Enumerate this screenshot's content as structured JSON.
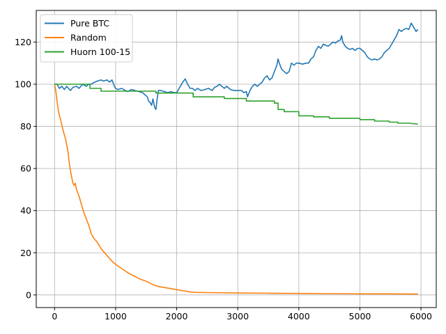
{
  "chart_data": {
    "type": "line",
    "title": "",
    "xlabel": "",
    "ylabel": "",
    "xlim": [
      -300,
      6250
    ],
    "ylim": [
      -6,
      135
    ],
    "xticks": [
      0,
      1000,
      2000,
      3000,
      4000,
      5000,
      6000
    ],
    "yticks": [
      0,
      20,
      40,
      60,
      80,
      100,
      120
    ],
    "grid": true,
    "legend_position": "top-left",
    "series": [
      {
        "name": "Pure BTC",
        "color": "#1f77b4",
        "points": [
          [
            0,
            100
          ],
          [
            40,
            100
          ],
          [
            80,
            98
          ],
          [
            120,
            99
          ],
          [
            160,
            97.5
          ],
          [
            200,
            99
          ],
          [
            260,
            97
          ],
          [
            300,
            98.5
          ],
          [
            360,
            99
          ],
          [
            400,
            98
          ],
          [
            460,
            100
          ],
          [
            520,
            99
          ],
          [
            560,
            100
          ],
          [
            600,
            100
          ],
          [
            660,
            101
          ],
          [
            700,
            101.5
          ],
          [
            760,
            102
          ],
          [
            800,
            101.5
          ],
          [
            860,
            102
          ],
          [
            900,
            101
          ],
          [
            940,
            102
          ],
          [
            980,
            99
          ],
          [
            1000,
            98
          ],
          [
            1040,
            97.5
          ],
          [
            1100,
            98
          ],
          [
            1160,
            97
          ],
          [
            1200,
            96.5
          ],
          [
            1260,
            97.5
          ],
          [
            1320,
            97
          ],
          [
            1380,
            96.5
          ],
          [
            1440,
            96
          ],
          [
            1480,
            95
          ],
          [
            1520,
            94
          ],
          [
            1540,
            92
          ],
          [
            1560,
            91.5
          ],
          [
            1590,
            90
          ],
          [
            1610,
            93
          ],
          [
            1640,
            89
          ],
          [
            1660,
            88
          ],
          [
            1680,
            93
          ],
          [
            1700,
            97
          ],
          [
            1740,
            97
          ],
          [
            1800,
            96.5
          ],
          [
            1860,
            96
          ],
          [
            1900,
            96.5
          ],
          [
            1960,
            96
          ],
          [
            2000,
            96
          ],
          [
            2060,
            99
          ],
          [
            2100,
            101
          ],
          [
            2140,
            102.5
          ],
          [
            2180,
            100
          ],
          [
            2220,
            98
          ],
          [
            2260,
            98
          ],
          [
            2300,
            97
          ],
          [
            2340,
            98
          ],
          [
            2400,
            97
          ],
          [
            2460,
            97.5
          ],
          [
            2520,
            98
          ],
          [
            2580,
            97
          ],
          [
            2620,
            98.5
          ],
          [
            2660,
            99
          ],
          [
            2700,
            100
          ],
          [
            2740,
            99
          ],
          [
            2780,
            98
          ],
          [
            2820,
            99
          ],
          [
            2880,
            97.5
          ],
          [
            2940,
            97
          ],
          [
            3000,
            97
          ],
          [
            3060,
            97
          ],
          [
            3100,
            96
          ],
          [
            3140,
            96.5
          ],
          [
            3160,
            94
          ],
          [
            3200,
            97
          ],
          [
            3240,
            99
          ],
          [
            3280,
            100
          ],
          [
            3320,
            99
          ],
          [
            3360,
            100
          ],
          [
            3400,
            101
          ],
          [
            3440,
            103
          ],
          [
            3480,
            104
          ],
          [
            3520,
            102
          ],
          [
            3560,
            103
          ],
          [
            3600,
            106
          ],
          [
            3640,
            109
          ],
          [
            3660,
            112
          ],
          [
            3680,
            110
          ],
          [
            3720,
            107
          ],
          [
            3760,
            106
          ],
          [
            3800,
            105
          ],
          [
            3840,
            106
          ],
          [
            3880,
            110
          ],
          [
            3920,
            109
          ],
          [
            3960,
            110
          ],
          [
            4000,
            110
          ],
          [
            4060,
            109.5
          ],
          [
            4120,
            110
          ],
          [
            4160,
            110
          ],
          [
            4200,
            112
          ],
          [
            4240,
            113
          ],
          [
            4280,
            116
          ],
          [
            4320,
            118
          ],
          [
            4360,
            117
          ],
          [
            4400,
            119
          ],
          [
            4440,
            118.5
          ],
          [
            4480,
            118
          ],
          [
            4520,
            119
          ],
          [
            4560,
            120
          ],
          [
            4600,
            119.5
          ],
          [
            4640,
            120.5
          ],
          [
            4680,
            121
          ],
          [
            4700,
            123
          ],
          [
            4720,
            120
          ],
          [
            4760,
            118
          ],
          [
            4800,
            117
          ],
          [
            4840,
            116.5
          ],
          [
            4880,
            117
          ],
          [
            4920,
            116
          ],
          [
            4960,
            117
          ],
          [
            5000,
            117
          ],
          [
            5040,
            116
          ],
          [
            5080,
            115
          ],
          [
            5120,
            113
          ],
          [
            5160,
            112
          ],
          [
            5200,
            111.5
          ],
          [
            5240,
            112
          ],
          [
            5280,
            111.5
          ],
          [
            5320,
            112
          ],
          [
            5360,
            113
          ],
          [
            5400,
            115
          ],
          [
            5440,
            116
          ],
          [
            5480,
            117
          ],
          [
            5520,
            119
          ],
          [
            5560,
            121
          ],
          [
            5600,
            123
          ],
          [
            5640,
            126
          ],
          [
            5680,
            125
          ],
          [
            5720,
            126
          ],
          [
            5760,
            126.5
          ],
          [
            5800,
            126
          ],
          [
            5840,
            129
          ],
          [
            5880,
            127
          ],
          [
            5920,
            125
          ],
          [
            5950,
            126
          ]
        ]
      },
      {
        "name": "Random",
        "color": "#ff7f0e",
        "points": [
          [
            0,
            100
          ],
          [
            20,
            97
          ],
          [
            40,
            92
          ],
          [
            60,
            88
          ],
          [
            80,
            85
          ],
          [
            100,
            83
          ],
          [
            140,
            78
          ],
          [
            180,
            74
          ],
          [
            220,
            68
          ],
          [
            240,
            63
          ],
          [
            260,
            59
          ],
          [
            280,
            56
          ],
          [
            300,
            53
          ],
          [
            320,
            52
          ],
          [
            340,
            53
          ],
          [
            360,
            50
          ],
          [
            400,
            47
          ],
          [
            440,
            43
          ],
          [
            480,
            39
          ],
          [
            520,
            36
          ],
          [
            560,
            33
          ],
          [
            600,
            29
          ],
          [
            640,
            27
          ],
          [
            700,
            25
          ],
          [
            760,
            22
          ],
          [
            820,
            20
          ],
          [
            880,
            18
          ],
          [
            940,
            16
          ],
          [
            1000,
            14.5
          ],
          [
            1100,
            12.5
          ],
          [
            1200,
            10.5
          ],
          [
            1300,
            9
          ],
          [
            1400,
            7.5
          ],
          [
            1500,
            6.5
          ],
          [
            1600,
            5
          ],
          [
            1700,
            4
          ],
          [
            1800,
            3.5
          ],
          [
            1900,
            3
          ],
          [
            2000,
            2.5
          ],
          [
            2100,
            2
          ],
          [
            2200,
            1.5
          ],
          [
            2300,
            1.2
          ],
          [
            2500,
            1.1
          ],
          [
            3000,
            0.9
          ],
          [
            3500,
            0.8
          ],
          [
            4000,
            0.7
          ],
          [
            4500,
            0.6
          ],
          [
            5000,
            0.5
          ],
          [
            5500,
            0.5
          ],
          [
            5950,
            0.4
          ]
        ]
      },
      {
        "name": "Huorn 100-15",
        "color": "#2ca02c",
        "points": [
          [
            0,
            100
          ],
          [
            580,
            100
          ],
          [
            580,
            98
          ],
          [
            760,
            98
          ],
          [
            760,
            96.7
          ],
          [
            1660,
            96.7
          ],
          [
            1660,
            95.8
          ],
          [
            2270,
            95.8
          ],
          [
            2270,
            94
          ],
          [
            2780,
            94
          ],
          [
            2780,
            93.2
          ],
          [
            3140,
            93.2
          ],
          [
            3140,
            92
          ],
          [
            3600,
            92
          ],
          [
            3600,
            91
          ],
          [
            3660,
            91
          ],
          [
            3660,
            88
          ],
          [
            3760,
            88
          ],
          [
            3760,
            87
          ],
          [
            4000,
            87
          ],
          [
            4000,
            85
          ],
          [
            4240,
            85
          ],
          [
            4240,
            84.5
          ],
          [
            4500,
            84.5
          ],
          [
            4500,
            83.8
          ],
          [
            5000,
            83.8
          ],
          [
            5000,
            83.2
          ],
          [
            5240,
            83.2
          ],
          [
            5240,
            82.5
          ],
          [
            5480,
            82.5
          ],
          [
            5480,
            82
          ],
          [
            5620,
            82
          ],
          [
            5620,
            81.5
          ],
          [
            5800,
            81.5
          ],
          [
            5950,
            81
          ]
        ]
      }
    ]
  }
}
